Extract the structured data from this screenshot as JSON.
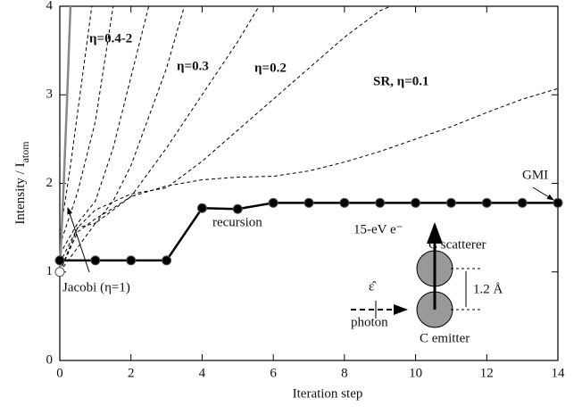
{
  "chart_data": {
    "type": "line",
    "xlabel": "Iteration step",
    "ylabel": [
      "Intensity / I",
      "atom"
    ],
    "xlim": [
      0,
      14
    ],
    "xticks": [
      0,
      2,
      4,
      6,
      8,
      10,
      12,
      14
    ],
    "ylim": [
      0,
      4
    ],
    "yticks": [
      0,
      1,
      2,
      3,
      4
    ],
    "series": [
      {
        "color": "#000000",
        "style": "dashed",
        "x": [
          0,
          1,
          2,
          3,
          4,
          5,
          6,
          7,
          8,
          9,
          10,
          11,
          12,
          13,
          14
        ],
        "values": [
          1.0,
          1.55,
          1.85,
          1.97,
          2.04,
          2.07,
          2.08,
          2.14,
          2.24,
          2.36,
          2.5,
          2.64,
          2.8,
          2.95,
          3.07
        ]
      },
      {
        "color": "#000000",
        "style": "dashed",
        "x": [
          0,
          0.5,
          1,
          2,
          3,
          4,
          5,
          6,
          7,
          8,
          9,
          9.3
        ],
        "values": [
          1.0,
          1.5,
          1.7,
          1.88,
          1.95,
          2.25,
          2.6,
          2.95,
          3.3,
          3.65,
          3.95,
          4.0
        ]
      },
      {
        "color": "#000000",
        "style": "dashed",
        "x": [
          0,
          0.5,
          1,
          1.5,
          2,
          3,
          4,
          5,
          5.6
        ],
        "values": [
          1.0,
          1.45,
          1.6,
          1.72,
          1.85,
          2.4,
          3.0,
          3.6,
          4.0
        ]
      },
      {
        "color": "#000000",
        "style": "dashed",
        "x": [
          0,
          0.5,
          1,
          1.5,
          2,
          3,
          3.5
        ],
        "values": [
          1.1,
          1.5,
          1.55,
          1.8,
          2.2,
          3.3,
          4.0
        ]
      },
      {
        "color": "#000000",
        "style": "dashed",
        "x": [
          0,
          0.5,
          1,
          1.5,
          2,
          2.5
        ],
        "values": [
          1.2,
          1.55,
          1.8,
          2.4,
          3.2,
          4.0
        ]
      },
      {
        "color": "#000000",
        "style": "dashed",
        "x": [
          0,
          0.5,
          1,
          1.5
        ],
        "values": [
          1.3,
          1.9,
          2.7,
          4.0
        ]
      },
      {
        "color": "#000000",
        "style": "dashed",
        "x": [
          0,
          0.3,
          0.6,
          0.9
        ],
        "values": [
          1.4,
          2.2,
          3.1,
          4.0
        ]
      },
      {
        "color": "#888888",
        "style": "solid",
        "x": [
          0,
          0.1,
          0.2,
          0.3
        ],
        "values": [
          1.0,
          1.9,
          2.9,
          4.0
        ]
      },
      {
        "color": "#000000",
        "style": "solid",
        "markers": true,
        "x": [
          0,
          1,
          2,
          3,
          4,
          5,
          6,
          7,
          8,
          9,
          10,
          11,
          12,
          13,
          14
        ],
        "values": [
          1.13,
          1.13,
          1.13,
          1.13,
          1.72,
          1.71,
          1.78,
          1.78,
          1.78,
          1.78,
          1.78,
          1.78,
          1.78,
          1.78,
          1.78
        ]
      },
      {
        "color": "#ffffff",
        "style": "solid",
        "markers": true,
        "x": [
          0
        ],
        "values": [
          1.0
        ]
      }
    ],
    "annotations": [
      "η=0.4-2",
      "η=0.3",
      "η=0.2",
      "SR, η=0.1",
      "GMI",
      "recursion",
      "Jacobi (η=1)",
      "15-eV e⁻",
      "C scatterer",
      "1.2 Å",
      "photon",
      "C emitter",
      "ε̂"
    ]
  }
}
